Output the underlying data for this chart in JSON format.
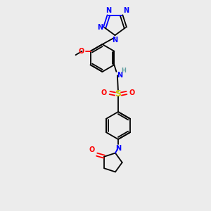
{
  "bg_color": "#ececec",
  "atom_colors": {
    "C": "#000000",
    "N": "#0000ff",
    "O": "#ff0000",
    "S": "#cccc00",
    "H": "#5f9ea0"
  },
  "bond_color": "#000000"
}
